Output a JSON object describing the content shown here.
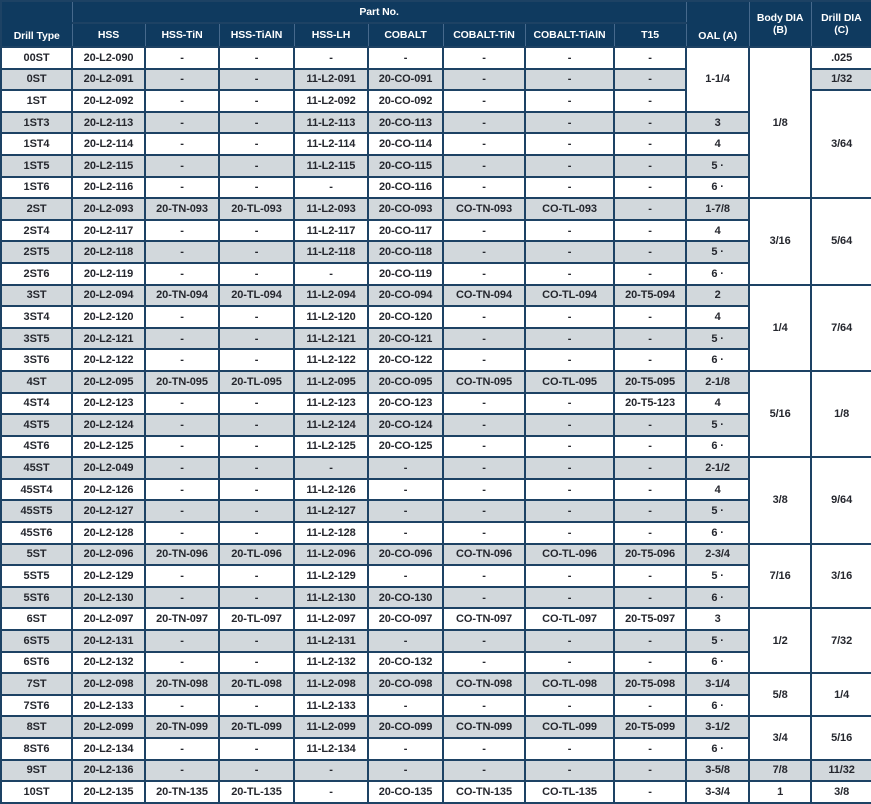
{
  "colors": {
    "header_bg": "#0f3a5f",
    "header_text": "#ffffff",
    "row_stripe": "#d2d8dc",
    "grid_line": "#1d4264",
    "body_text": "#25272e"
  },
  "table": {
    "header": {
      "drill_type": "Drill Type",
      "part_no_group": "Part No.",
      "part_columns": [
        "HSS",
        "HSS-TiN",
        "HSS-TiAlN",
        "HSS-LH",
        "COBALT",
        "COBALT-TiN",
        "COBALT-TiAlN",
        "T15"
      ],
      "oal": "OAL (A)",
      "body_dia_line1": "Body DIA",
      "body_dia_line2": "(B)",
      "drill_dia_line1": "Drill DIA",
      "drill_dia_line2": "(C)"
    },
    "rows": [
      {
        "type": "00ST",
        "parts": [
          "20-L2-090",
          "-",
          "-",
          "-",
          "-",
          "-",
          "-",
          "-"
        ],
        "oal": "1-1/4",
        "oal_span": 3,
        "body": "1/8",
        "body_span": 7,
        "drill": ".025",
        "drill_span": 1
      },
      {
        "type": "0ST",
        "parts": [
          "20-L2-091",
          "-",
          "-",
          "11-L2-091",
          "20-CO-091",
          "-",
          "-",
          "-"
        ],
        "drill": "1/32",
        "drill_span": 1
      },
      {
        "type": "1ST",
        "parts": [
          "20-L2-092",
          "-",
          "-",
          "11-L2-092",
          "20-CO-092",
          "-",
          "-",
          "-"
        ],
        "drill": "3/64",
        "drill_span": 5
      },
      {
        "type": "1ST3",
        "parts": [
          "20-L2-113",
          "-",
          "-",
          "11-L2-113",
          "20-CO-113",
          "-",
          "-",
          "-"
        ],
        "oal": "3",
        "oal_span": 1
      },
      {
        "type": "1ST4",
        "parts": [
          "20-L2-114",
          "-",
          "-",
          "11-L2-114",
          "20-CO-114",
          "-",
          "-",
          "-"
        ],
        "oal": "4",
        "oal_span": 1
      },
      {
        "type": "1ST5",
        "parts": [
          "20-L2-115",
          "-",
          "-",
          "11-L2-115",
          "20-CO-115",
          "-",
          "-",
          "-"
        ],
        "oal": "5 ·",
        "oal_span": 1
      },
      {
        "type": "1ST6",
        "parts": [
          "20-L2-116",
          "-",
          "-",
          "-",
          "20-CO-116",
          "-",
          "-",
          "-"
        ],
        "oal": "6 ·",
        "oal_span": 1
      },
      {
        "type": "2ST",
        "parts": [
          "20-L2-093",
          "20-TN-093",
          "20-TL-093",
          "11-L2-093",
          "20-CO-093",
          "CO-TN-093",
          "CO-TL-093",
          "-"
        ],
        "oal": "1-7/8",
        "oal_span": 1,
        "body": "3/16",
        "body_span": 4,
        "drill": "5/64",
        "drill_span": 4
      },
      {
        "type": "2ST4",
        "parts": [
          "20-L2-117",
          "-",
          "-",
          "11-L2-117",
          "20-CO-117",
          "-",
          "-",
          "-"
        ],
        "oal": "4",
        "oal_span": 1
      },
      {
        "type": "2ST5",
        "parts": [
          "20-L2-118",
          "-",
          "-",
          "11-L2-118",
          "20-CO-118",
          "-",
          "-",
          "-"
        ],
        "oal": "5 ·",
        "oal_span": 1
      },
      {
        "type": "2ST6",
        "parts": [
          "20-L2-119",
          "-",
          "-",
          "-",
          "20-CO-119",
          "-",
          "-",
          "-"
        ],
        "oal": "6 ·",
        "oal_span": 1
      },
      {
        "type": "3ST",
        "parts": [
          "20-L2-094",
          "20-TN-094",
          "20-TL-094",
          "11-L2-094",
          "20-CO-094",
          "CO-TN-094",
          "CO-TL-094",
          "20-T5-094"
        ],
        "oal": "2",
        "oal_span": 1,
        "body": "1/4",
        "body_span": 4,
        "drill": "7/64",
        "drill_span": 4
      },
      {
        "type": "3ST4",
        "parts": [
          "20-L2-120",
          "-",
          "-",
          "11-L2-120",
          "20-CO-120",
          "-",
          "-",
          "-"
        ],
        "oal": "4",
        "oal_span": 1
      },
      {
        "type": "3ST5",
        "parts": [
          "20-L2-121",
          "-",
          "-",
          "11-L2-121",
          "20-CO-121",
          "-",
          "-",
          "-"
        ],
        "oal": "5 ·",
        "oal_span": 1
      },
      {
        "type": "3ST6",
        "parts": [
          "20-L2-122",
          "-",
          "-",
          "11-L2-122",
          "20-CO-122",
          "-",
          "-",
          "-"
        ],
        "oal": "6 ·",
        "oal_span": 1
      },
      {
        "type": "4ST",
        "parts": [
          "20-L2-095",
          "20-TN-095",
          "20-TL-095",
          "11-L2-095",
          "20-CO-095",
          "CO-TN-095",
          "CO-TL-095",
          "20-T5-095"
        ],
        "oal": "2-1/8",
        "oal_span": 1,
        "body": "5/16",
        "body_span": 4,
        "drill": "1/8",
        "drill_span": 4
      },
      {
        "type": "4ST4",
        "parts": [
          "20-L2-123",
          "-",
          "-",
          "11-L2-123",
          "20-CO-123",
          "-",
          "-",
          "20-T5-123"
        ],
        "oal": "4",
        "oal_span": 1
      },
      {
        "type": "4ST5",
        "parts": [
          "20-L2-124",
          "-",
          "-",
          "11-L2-124",
          "20-CO-124",
          "-",
          "-",
          "-"
        ],
        "oal": "5 ·",
        "oal_span": 1
      },
      {
        "type": "4ST6",
        "parts": [
          "20-L2-125",
          "-",
          "-",
          "11-L2-125",
          "20-CO-125",
          "-",
          "-",
          "-"
        ],
        "oal": "6 ·",
        "oal_span": 1
      },
      {
        "type": "45ST",
        "parts": [
          "20-L2-049",
          "-",
          "-",
          "-",
          "-",
          "-",
          "-",
          "-"
        ],
        "oal": "2-1/2",
        "oal_span": 1,
        "body": "3/8",
        "body_span": 4,
        "drill": "9/64",
        "drill_span": 4
      },
      {
        "type": "45ST4",
        "parts": [
          "20-L2-126",
          "-",
          "-",
          "11-L2-126",
          "-",
          "-",
          "-",
          "-"
        ],
        "oal": "4",
        "oal_span": 1
      },
      {
        "type": "45ST5",
        "parts": [
          "20-L2-127",
          "-",
          "-",
          "11-L2-127",
          "-",
          "-",
          "-",
          "-"
        ],
        "oal": "5 ·",
        "oal_span": 1
      },
      {
        "type": "45ST6",
        "parts": [
          "20-L2-128",
          "-",
          "-",
          "11-L2-128",
          "-",
          "-",
          "-",
          "-"
        ],
        "oal": "6 ·",
        "oal_span": 1
      },
      {
        "type": "5ST",
        "parts": [
          "20-L2-096",
          "20-TN-096",
          "20-TL-096",
          "11-L2-096",
          "20-CO-096",
          "CO-TN-096",
          "CO-TL-096",
          "20-T5-096"
        ],
        "oal": "2-3/4",
        "oal_span": 1,
        "body": "7/16",
        "body_span": 3,
        "drill": "3/16",
        "drill_span": 3
      },
      {
        "type": "5ST5",
        "parts": [
          "20-L2-129",
          "-",
          "-",
          "11-L2-129",
          "-",
          "-",
          "-",
          "-"
        ],
        "oal": "5 ·",
        "oal_span": 1
      },
      {
        "type": "5ST6",
        "parts": [
          "20-L2-130",
          "-",
          "-",
          "11-L2-130",
          "20-CO-130",
          "-",
          "-",
          "-"
        ],
        "oal": "6 ·",
        "oal_span": 1
      },
      {
        "type": "6ST",
        "parts": [
          "20-L2-097",
          "20-TN-097",
          "20-TL-097",
          "11-L2-097",
          "20-CO-097",
          "CO-TN-097",
          "CO-TL-097",
          "20-T5-097"
        ],
        "oal": "3",
        "oal_span": 1,
        "body": "1/2",
        "body_span": 3,
        "drill": "7/32",
        "drill_span": 3
      },
      {
        "type": "6ST5",
        "parts": [
          "20-L2-131",
          "-",
          "-",
          "11-L2-131",
          "-",
          "-",
          "-",
          "-"
        ],
        "oal": "5 ·",
        "oal_span": 1
      },
      {
        "type": "6ST6",
        "parts": [
          "20-L2-132",
          "-",
          "-",
          "11-L2-132",
          "20-CO-132",
          "-",
          "-",
          "-"
        ],
        "oal": "6 ·",
        "oal_span": 1
      },
      {
        "type": "7ST",
        "parts": [
          "20-L2-098",
          "20-TN-098",
          "20-TL-098",
          "11-L2-098",
          "20-CO-098",
          "CO-TN-098",
          "CO-TL-098",
          "20-T5-098"
        ],
        "oal": "3-1/4",
        "oal_span": 1,
        "body": "5/8",
        "body_span": 2,
        "drill": "1/4",
        "drill_span": 2
      },
      {
        "type": "7ST6",
        "parts": [
          "20-L2-133",
          "-",
          "-",
          "11-L2-133",
          "-",
          "-",
          "-",
          "-"
        ],
        "oal": "6 ·",
        "oal_span": 1
      },
      {
        "type": "8ST",
        "parts": [
          "20-L2-099",
          "20-TN-099",
          "20-TL-099",
          "11-L2-099",
          "20-CO-099",
          "CO-TN-099",
          "CO-TL-099",
          "20-T5-099"
        ],
        "oal": "3-1/2",
        "oal_span": 1,
        "body": "3/4",
        "body_span": 2,
        "drill": "5/16",
        "drill_span": 2
      },
      {
        "type": "8ST6",
        "parts": [
          "20-L2-134",
          "-",
          "-",
          "11-L2-134",
          "-",
          "-",
          "-",
          "-"
        ],
        "oal": "6 ·",
        "oal_span": 1
      },
      {
        "type": "9ST",
        "parts": [
          "20-L2-136",
          "-",
          "-",
          "-",
          "-",
          "-",
          "-",
          "-"
        ],
        "oal": "3-5/8",
        "oal_span": 1,
        "body": "7/8",
        "body_span": 1,
        "drill": "11/32",
        "drill_span": 1
      },
      {
        "type": "10ST",
        "parts": [
          "20-L2-135",
          "20-TN-135",
          "20-TL-135",
          "-",
          "20-CO-135",
          "CO-TN-135",
          "CO-TL-135",
          "-"
        ],
        "oal": "3-3/4",
        "oal_span": 1,
        "body": "1",
        "body_span": 1,
        "drill": "3/8",
        "drill_span": 1
      }
    ]
  }
}
